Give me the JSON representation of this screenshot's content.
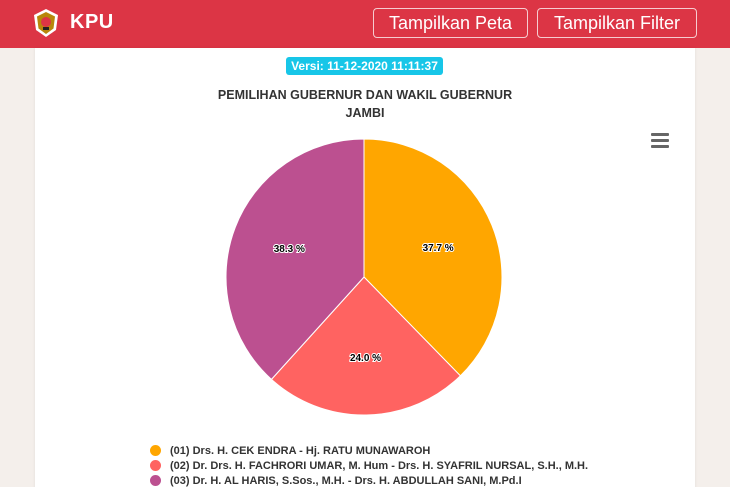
{
  "header": {
    "brand": "KPU",
    "btn_map": "Tampilkan Peta",
    "btn_filter": "Tampilkan Filter"
  },
  "version": "Versi: 11-12-2020 11:11:37",
  "chart_data": {
    "type": "pie",
    "title_lines": [
      "PEMILIHAN GUBERNUR DAN WAKIL GUBERNUR",
      "JAMBI"
    ],
    "slices": [
      {
        "label": "(01) Drs. H. CEK ENDRA - Hj. RATU MUNAWAROH",
        "value": 37.7,
        "display": "37.7 %",
        "color": "#ffa600"
      },
      {
        "label": "(02) Dr. Drs. H. FACHRORI UMAR, M. Hum - Drs. H. SYAFRIL NURSAL, S.H., M.H.",
        "value": 24.0,
        "display": "24.0 %",
        "color": "#ff6361"
      },
      {
        "label": "(03) Dr. H. AL HARIS, S.Sos., M.H. - Drs. H. ABDULLAH SANI, M.Pd.I",
        "value": 38.3,
        "display": "38.3 %",
        "color": "#bc5090"
      }
    ],
    "legend_position": "bottom"
  }
}
